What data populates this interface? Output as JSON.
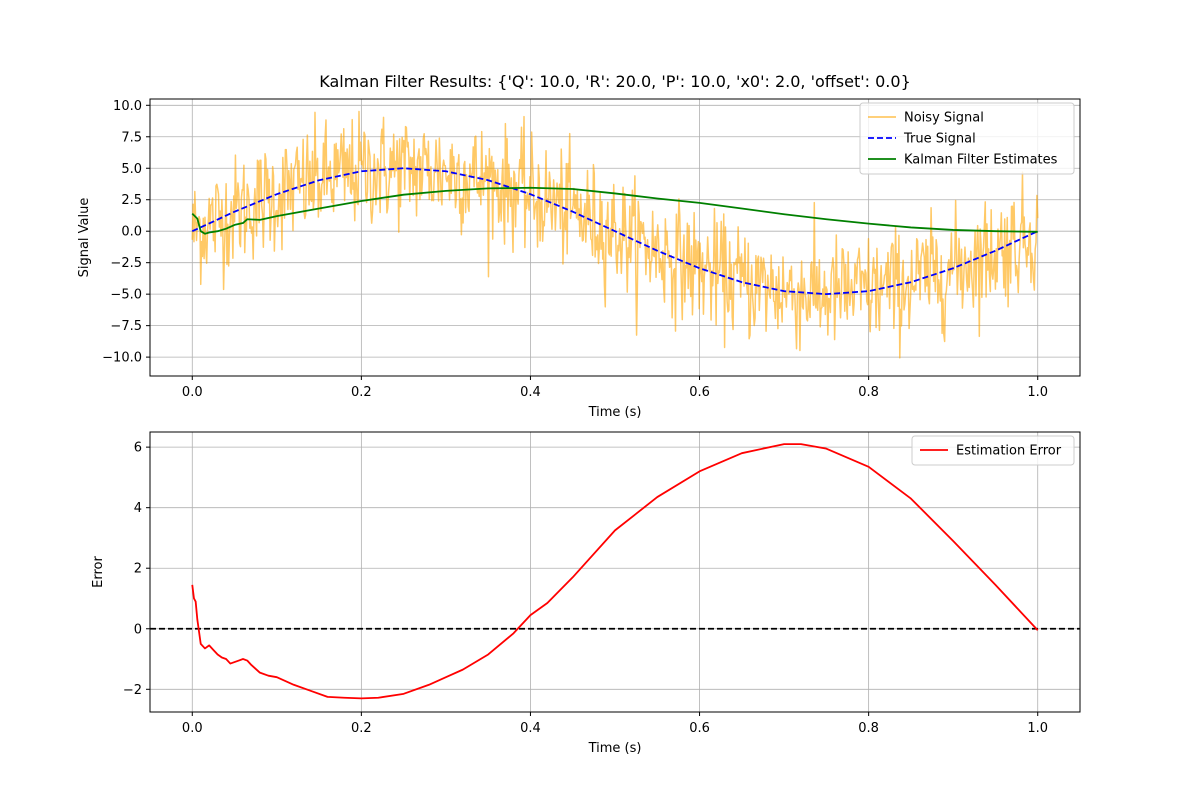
{
  "chart_data": [
    {
      "type": "line",
      "title": "Kalman Filter Results: {'Q': 10.0, 'R': 20.0, 'P': 10.0, 'x0': 2.0, 'offset': 0.0}",
      "xlabel": "Time (s)",
      "ylabel": "Signal Value",
      "xlim": [
        -0.05,
        1.05
      ],
      "ylim": [
        -11.5,
        10.5
      ],
      "xticks": [
        0.0,
        0.2,
        0.4,
        0.6,
        0.8,
        1.0
      ],
      "xtick_labels": [
        "0.0",
        "0.2",
        "0.4",
        "0.6",
        "0.8",
        "1.0"
      ],
      "yticks": [
        -10.0,
        -7.5,
        -5.0,
        -2.5,
        0.0,
        2.5,
        5.0,
        7.5,
        10.0
      ],
      "ytick_labels": [
        "−10.0",
        "−7.5",
        "−5.0",
        "−2.5",
        "0.0",
        "2.5",
        "5.0",
        "7.5",
        "10.0"
      ],
      "grid": true,
      "legend_position": "top-right",
      "series": [
        {
          "name": "Noisy Signal",
          "color": "#FFA500",
          "opacity": 0.6,
          "style": "solid",
          "generator": "true_signal_plus_gaussian_noise",
          "noise_std": 2.2,
          "points": 1000
        },
        {
          "name": "True Signal",
          "color": "#0000FF",
          "style": "dashed",
          "x": [
            0.0,
            0.05,
            0.1,
            0.15,
            0.2,
            0.25,
            0.3,
            0.35,
            0.4,
            0.45,
            0.5,
            0.55,
            0.6,
            0.65,
            0.7,
            0.75,
            0.8,
            0.85,
            0.9,
            0.95,
            1.0
          ],
          "y": [
            0.0,
            1.55,
            2.94,
            4.05,
            4.76,
            5.0,
            4.76,
            4.05,
            2.94,
            1.55,
            0.0,
            -1.55,
            -2.94,
            -4.05,
            -4.76,
            -5.0,
            -4.76,
            -4.05,
            -2.94,
            -1.55,
            0.0
          ]
        },
        {
          "name": "Kalman Filter Estimates",
          "color": "#008000",
          "style": "solid",
          "x": [
            0.0,
            0.003,
            0.006,
            0.01,
            0.015,
            0.02,
            0.03,
            0.04,
            0.05,
            0.06,
            0.065,
            0.08,
            0.1,
            0.15,
            0.2,
            0.25,
            0.3,
            0.35,
            0.4,
            0.45,
            0.5,
            0.55,
            0.6,
            0.65,
            0.7,
            0.75,
            0.8,
            0.85,
            0.9,
            0.95,
            1.0
          ],
          "y": [
            1.4,
            1.2,
            1.0,
            0.0,
            -0.2,
            -0.1,
            0.0,
            0.2,
            0.5,
            0.65,
            0.95,
            0.9,
            1.2,
            1.8,
            2.4,
            2.9,
            3.2,
            3.4,
            3.45,
            3.35,
            3.0,
            2.6,
            2.25,
            1.8,
            1.35,
            0.95,
            0.6,
            0.3,
            0.1,
            0.0,
            -0.05
          ]
        }
      ]
    },
    {
      "type": "line",
      "title": "",
      "xlabel": "Time (s)",
      "ylabel": "Error",
      "xlim": [
        -0.05,
        1.05
      ],
      "ylim": [
        -2.75,
        6.5
      ],
      "xticks": [
        0.0,
        0.2,
        0.4,
        0.6,
        0.8,
        1.0
      ],
      "xtick_labels": [
        "0.0",
        "0.2",
        "0.4",
        "0.6",
        "0.8",
        "1.0"
      ],
      "yticks": [
        -2,
        0,
        2,
        4,
        6
      ],
      "ytick_labels": [
        "−2",
        "0",
        "2",
        "4",
        "6"
      ],
      "grid": true,
      "legend_position": "top-right",
      "hline": {
        "y": 0,
        "color": "#000000",
        "style": "dashed"
      },
      "series": [
        {
          "name": "Estimation Error",
          "color": "#FF0000",
          "style": "solid",
          "x": [
            0.0,
            0.002,
            0.004,
            0.006,
            0.008,
            0.01,
            0.015,
            0.02,
            0.025,
            0.03,
            0.035,
            0.04,
            0.045,
            0.05,
            0.055,
            0.06,
            0.065,
            0.07,
            0.08,
            0.09,
            0.1,
            0.12,
            0.14,
            0.16,
            0.18,
            0.2,
            0.22,
            0.25,
            0.28,
            0.3,
            0.32,
            0.35,
            0.38,
            0.4,
            0.42,
            0.45,
            0.5,
            0.55,
            0.6,
            0.65,
            0.7,
            0.72,
            0.75,
            0.8,
            0.85,
            0.9,
            0.95,
            1.0
          ],
          "y": [
            1.45,
            1.0,
            0.9,
            0.3,
            -0.1,
            -0.5,
            -0.65,
            -0.55,
            -0.7,
            -0.85,
            -0.95,
            -1.0,
            -1.15,
            -1.1,
            -1.05,
            -1.0,
            -1.05,
            -1.2,
            -1.45,
            -1.55,
            -1.6,
            -1.85,
            -2.05,
            -2.25,
            -2.28,
            -2.3,
            -2.28,
            -2.15,
            -1.85,
            -1.6,
            -1.35,
            -0.85,
            -0.15,
            0.45,
            0.85,
            1.7,
            3.25,
            4.35,
            5.2,
            5.8,
            6.1,
            6.1,
            5.95,
            5.35,
            4.3,
            2.9,
            1.45,
            -0.05
          ]
        }
      ]
    }
  ]
}
